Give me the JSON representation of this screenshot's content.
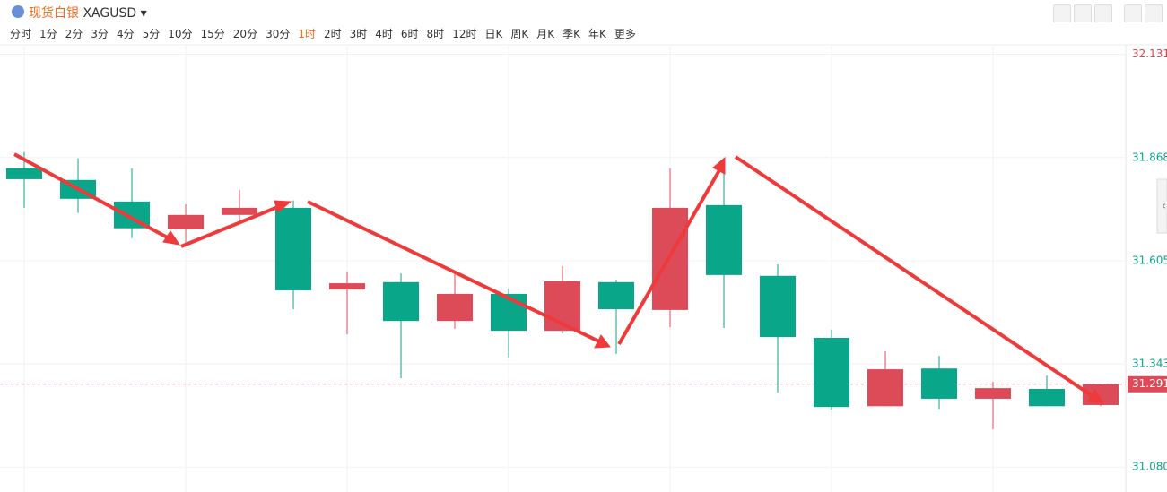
{
  "toolbar": {
    "name": "现货白银",
    "symbol": "XAGUSD",
    "intervals": [
      "分时",
      "1分",
      "2分",
      "3分",
      "4分",
      "5分",
      "10分",
      "15分",
      "20分",
      "30分",
      "1时",
      "2时",
      "3时",
      "4时",
      "6时",
      "8时",
      "12时",
      "日K",
      "周K",
      "月K",
      "季K",
      "年K",
      "更多"
    ],
    "active_interval": "1时"
  },
  "chart_data": {
    "type": "candlestick",
    "up_color": "#dc4b57",
    "down_color": "#0aa68a",
    "open": [
      31.841,
      31.811,
      31.756,
      31.685,
      31.722,
      31.74,
      31.532,
      31.551,
      31.452,
      31.521,
      31.427,
      31.551,
      31.48,
      31.747,
      31.567,
      31.409,
      31.235,
      31.331,
      31.254,
      31.279,
      31.238
    ],
    "high": [
      31.882,
      31.866,
      31.841,
      31.749,
      31.786,
      31.759,
      31.576,
      31.573,
      31.573,
      31.535,
      31.592,
      31.557,
      31.841,
      31.859,
      31.596,
      31.43,
      31.375,
      31.363,
      31.297,
      31.313,
      31.291
    ],
    "low": [
      31.74,
      31.727,
      31.663,
      31.647,
      31.708,
      31.482,
      31.418,
      31.306,
      31.432,
      31.359,
      31.42,
      31.368,
      31.436,
      31.434,
      31.27,
      31.226,
      31.235,
      31.228,
      31.176,
      31.235,
      31.235
    ],
    "close": [
      31.813,
      31.763,
      31.688,
      31.722,
      31.74,
      31.53,
      31.548,
      31.452,
      31.521,
      31.427,
      31.553,
      31.482,
      31.74,
      31.569,
      31.411,
      31.233,
      31.329,
      31.254,
      31.281,
      31.235,
      31.291
    ],
    "ylim": [
      31.06,
      32.155
    ],
    "yticks": [
      32.131,
      31.868,
      31.605,
      31.343,
      {
        "value": 31.08,
        "label": "31.080"
      }
    ],
    "ytick_colors": [
      "#e0424f",
      "#0aa68a",
      "#0aa68a",
      "#0aa68a",
      "#0aa68a"
    ],
    "current_price": 31.291,
    "current_color": "#dc4b57",
    "grid": true
  }
}
